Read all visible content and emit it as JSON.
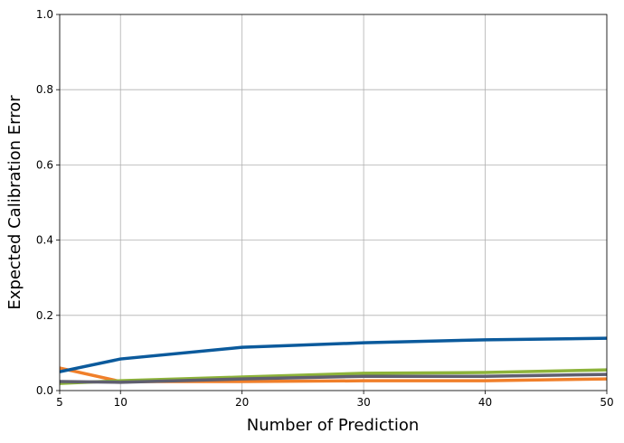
{
  "chart_data": {
    "type": "line",
    "xlabel": "Number of Prediction",
    "ylabel": "Expected Calibration Error",
    "x": [
      5,
      10,
      20,
      30,
      40,
      50
    ],
    "series": [
      {
        "color": "#f07f2a",
        "values": [
          0.06,
          0.024,
          0.024,
          0.026,
          0.026,
          0.031
        ]
      },
      {
        "color": "#8db33a",
        "values": [
          0.019,
          0.026,
          0.036,
          0.046,
          0.048,
          0.055
        ]
      },
      {
        "color": "#5f5f6f",
        "values": [
          0.024,
          0.022,
          0.031,
          0.038,
          0.038,
          0.043
        ]
      },
      {
        "color": "#0b5a9c",
        "values": [
          0.05,
          0.084,
          0.115,
          0.127,
          0.135,
          0.139
        ]
      }
    ],
    "xlim": [
      5,
      50
    ],
    "xticks": [
      5,
      10,
      20,
      30,
      40,
      50
    ],
    "ylim": [
      0,
      1
    ],
    "yticks": [
      {
        "value": 0,
        "label": "0.0"
      },
      0.2,
      0.4,
      0.6,
      0.8,
      {
        "value": 1,
        "label": "1.0"
      }
    ],
    "grid": true
  }
}
